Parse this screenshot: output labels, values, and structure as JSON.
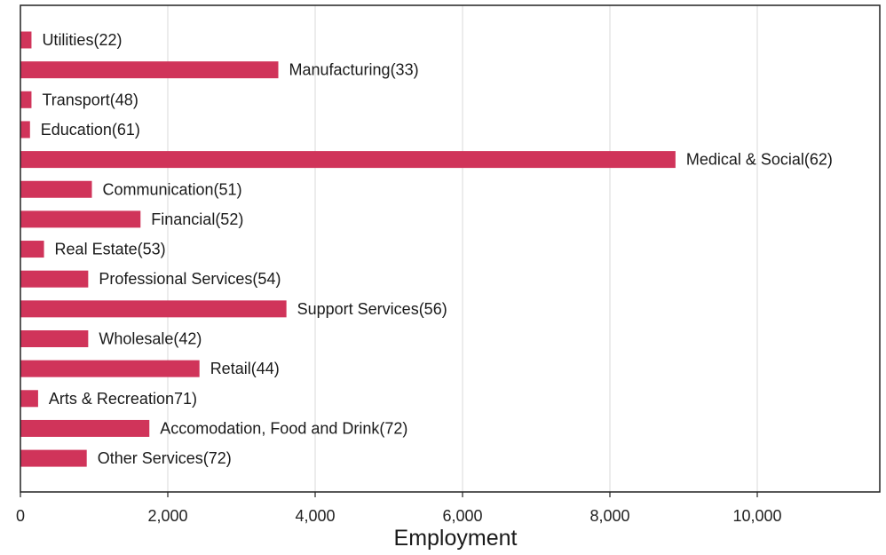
{
  "chart_data": {
    "type": "bar",
    "orientation": "horizontal",
    "title": "",
    "xlabel": "Employment",
    "ylabel": "",
    "xlim": [
      0,
      11700
    ],
    "xticks": [
      0,
      2000,
      4000,
      6000,
      8000,
      10000
    ],
    "xtick_labels": [
      "0",
      "2,000",
      "4,000",
      "6,000",
      "8,000",
      "10,000"
    ],
    "grid": "vertical",
    "bar_color": "#d0345a",
    "categories": [
      "Utilities(22)",
      "Manufacturing(33)",
      "Transport(48)",
      "Education(61)",
      "Medical & Social(62)",
      "Communication(51)",
      "Financial(52)",
      "Real Estate(53)",
      "Professional Services(54)",
      "Support Services(56)",
      "Wholesale(42)",
      "Retail(44)",
      "Arts & Recreation71)",
      "Accomodation, Food and Drink(72)",
      "Other Services(72)"
    ],
    "values": [
      150,
      3500,
      150,
      130,
      8890,
      970,
      1630,
      320,
      920,
      3610,
      920,
      2430,
      240,
      1750,
      900
    ]
  }
}
